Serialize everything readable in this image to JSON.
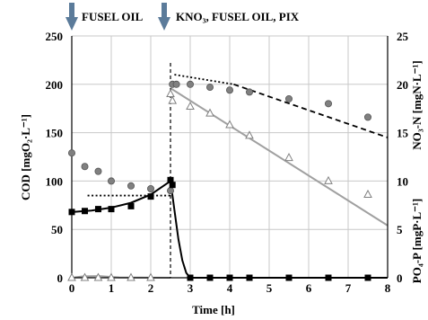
{
  "chart_data": {
    "type": "scatter",
    "xlabel": "Time [h]",
    "ylabel_left": "COD [mgO₂·L⁻¹]",
    "ylabel_right_top": "NO₃-N [mgN·L⁻¹]",
    "ylabel_right_bottom": "PO₄-P [mgP·L⁻¹]",
    "xlim": [
      0,
      8
    ],
    "ylim_left": [
      0,
      250
    ],
    "ylim_right": [
      0,
      25
    ],
    "x_ticks": [
      "0",
      "1",
      "2",
      "3",
      "4",
      "5",
      "6",
      "7",
      "8"
    ],
    "y_left_ticks": [
      "0",
      "50",
      "100",
      "150",
      "200",
      "250"
    ],
    "y_right_ticks": [
      "0",
      "5",
      "10",
      "15",
      "20",
      "25"
    ],
    "grid": true,
    "annotations": [
      {
        "text": "FUSEL OIL",
        "x": 0
      },
      {
        "text": "KNO₃, FUSEL OIL, PIX",
        "x": 2.5
      }
    ],
    "series": [
      {
        "marker": "circle",
        "axis": "left",
        "color": "#808080",
        "x": [
          0,
          0.33,
          0.67,
          1,
          1.5,
          2,
          2.5,
          2.55,
          2.65,
          3,
          3.5,
          4,
          4.5,
          5.5,
          6.5,
          7.5
        ],
        "y": [
          129,
          115,
          110,
          100,
          95,
          92,
          90,
          200,
          200,
          200,
          197,
          194,
          192,
          185,
          180,
          166
        ]
      },
      {
        "marker": "square",
        "axis": "left",
        "color": "#000000",
        "x": [
          0,
          0.33,
          0.67,
          1,
          1.5,
          2,
          2.5,
          2.55,
          3,
          3.5,
          4,
          4.5,
          5.5,
          6.5,
          7.5
        ],
        "y": [
          68,
          69,
          71,
          71,
          74,
          84,
          101,
          96,
          0,
          0,
          0,
          0,
          0,
          0,
          0
        ]
      },
      {
        "marker": "triangle",
        "axis": "right",
        "color": "#808080",
        "x": [
          0,
          0.33,
          0.67,
          1,
          1.5,
          2,
          2.5,
          2.55,
          3,
          3.5,
          4,
          4.5,
          5.5,
          6.5,
          7.5
        ],
        "y": [
          0,
          0,
          0,
          0,
          0,
          0,
          19,
          18.3,
          17.7,
          17,
          15.8,
          14.7,
          12.4,
          10,
          8.6
        ]
      }
    ],
    "lines": [
      {
        "style": "dotted",
        "color": "#000000",
        "x": [
          0.4,
          2.5
        ],
        "y": [
          85,
          85
        ]
      },
      {
        "style": "solid",
        "color": "#000000",
        "x": [
          0,
          0.5,
          1,
          1.5,
          2,
          2.5
        ],
        "y": [
          68,
          69.5,
          72.5,
          77.5,
          86,
          100
        ]
      },
      {
        "style": "solid",
        "color": "#000000",
        "x": [
          2.5,
          2.6,
          2.7,
          2.8,
          2.9,
          3,
          8
        ],
        "y": [
          100,
          70,
          40,
          18,
          5,
          0,
          0
        ]
      },
      {
        "style": "solid",
        "color": "#a0a0a0",
        "x": [
          0,
          0.3,
          0.7,
          1.2,
          2.5
        ],
        "y": [
          0,
          1.5,
          1.8,
          0.3,
          0
        ]
      },
      {
        "style": "solid",
        "color": "#a0a0a0",
        "x": [
          2.5,
          8
        ],
        "y": [
          196,
          54
        ]
      },
      {
        "style": "dotted",
        "color": "#000000",
        "x": [
          2.6,
          4.1
        ],
        "y": [
          210,
          200
        ]
      },
      {
        "style": "dashed",
        "color": "#000000",
        "x": [
          4.1,
          8
        ],
        "y": [
          200,
          145
        ]
      }
    ],
    "vertical_markers": [
      {
        "style": "dashed",
        "x": 2.5
      }
    ]
  }
}
